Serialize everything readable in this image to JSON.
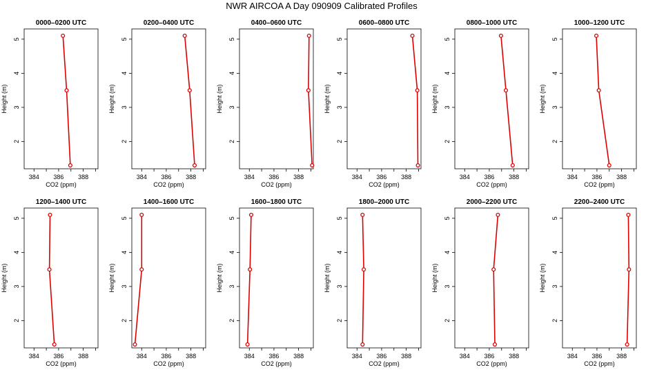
{
  "figure": {
    "title": "NWR AIRCOA A  Day 090909  Calibrated Profiles"
  },
  "chart_data": [
    {
      "type": "line",
      "title": "0000–0200 UTC",
      "xlabel": "CO2 (ppm)",
      "ylabel": "Height (m)",
      "xlim": [
        383.2,
        389.2
      ],
      "ylim": [
        1.2,
        5.3
      ],
      "xticks": [
        384,
        386,
        388
      ],
      "yticks": [
        2,
        3,
        4,
        5
      ],
      "grid": false,
      "series": [
        {
          "color": "#dd0000",
          "points": [
            [
              386.35,
              5.1
            ],
            [
              386.65,
              3.5
            ],
            [
              386.95,
              1.3
            ]
          ]
        }
      ]
    },
    {
      "type": "line",
      "title": "0200–0400 UTC",
      "xlabel": "CO2 (ppm)",
      "ylabel": "Height (m)",
      "xlim": [
        383.2,
        389.2
      ],
      "ylim": [
        1.2,
        5.3
      ],
      "xticks": [
        384,
        386,
        388
      ],
      "yticks": [
        2,
        3,
        4,
        5
      ],
      "grid": false,
      "series": [
        {
          "color": "#dd0000",
          "points": [
            [
              387.5,
              5.1
            ],
            [
              387.9,
              3.5
            ],
            [
              388.3,
              1.3
            ]
          ]
        }
      ]
    },
    {
      "type": "line",
      "title": "0400–0600 UTC",
      "xlabel": "CO2 (ppm)",
      "ylabel": "Height (m)",
      "xlim": [
        383.2,
        389.2
      ],
      "ylim": [
        1.2,
        5.3
      ],
      "xticks": [
        384,
        386,
        388
      ],
      "yticks": [
        2,
        3,
        4,
        5
      ],
      "grid": false,
      "series": [
        {
          "color": "#dd0000",
          "points": [
            [
              388.85,
              5.1
            ],
            [
              388.8,
              3.5
            ],
            [
              389.1,
              1.3
            ]
          ]
        }
      ]
    },
    {
      "type": "line",
      "title": "0600–0800 UTC",
      "xlabel": "CO2 (ppm)",
      "ylabel": "Height (m)",
      "xlim": [
        383.2,
        389.2
      ],
      "ylim": [
        1.2,
        5.3
      ],
      "xticks": [
        384,
        386,
        388
      ],
      "yticks": [
        2,
        3,
        4,
        5
      ],
      "grid": false,
      "series": [
        {
          "color": "#dd0000",
          "points": [
            [
              388.5,
              5.1
            ],
            [
              388.9,
              3.5
            ],
            [
              388.95,
              1.3
            ]
          ]
        }
      ]
    },
    {
      "type": "line",
      "title": "0800–1000 UTC",
      "xlabel": "CO2 (ppm)",
      "ylabel": "Height (m)",
      "xlim": [
        383.2,
        389.2
      ],
      "ylim": [
        1.2,
        5.3
      ],
      "xticks": [
        384,
        386,
        388
      ],
      "yticks": [
        2,
        3,
        4,
        5
      ],
      "grid": false,
      "series": [
        {
          "color": "#dd0000",
          "points": [
            [
              386.95,
              5.1
            ],
            [
              387.35,
              3.5
            ],
            [
              387.9,
              1.3
            ]
          ]
        }
      ]
    },
    {
      "type": "line",
      "title": "1000–1200 UTC",
      "xlabel": "CO2 (ppm)",
      "ylabel": "Height (m)",
      "xlim": [
        383.2,
        389.2
      ],
      "ylim": [
        1.2,
        5.3
      ],
      "xticks": [
        384,
        386,
        388
      ],
      "yticks": [
        2,
        3,
        4,
        5
      ],
      "grid": false,
      "series": [
        {
          "color": "#dd0000",
          "points": [
            [
              385.95,
              5.1
            ],
            [
              386.15,
              3.5
            ],
            [
              387.0,
              1.3
            ]
          ]
        }
      ]
    },
    {
      "type": "line",
      "title": "1200–1400 UTC",
      "xlabel": "CO2 (ppm)",
      "ylabel": "Height (m)",
      "xlim": [
        383.2,
        389.2
      ],
      "ylim": [
        1.2,
        5.3
      ],
      "xticks": [
        384,
        386,
        388
      ],
      "yticks": [
        2,
        3,
        4,
        5
      ],
      "grid": false,
      "series": [
        {
          "color": "#dd0000",
          "points": [
            [
              385.3,
              5.1
            ],
            [
              385.25,
              3.5
            ],
            [
              385.65,
              1.3
            ]
          ]
        }
      ]
    },
    {
      "type": "line",
      "title": "1400–1600 UTC",
      "xlabel": "CO2 (ppm)",
      "ylabel": "Height (m)",
      "xlim": [
        383.2,
        389.2
      ],
      "ylim": [
        1.2,
        5.3
      ],
      "xticks": [
        384,
        386,
        388
      ],
      "yticks": [
        2,
        3,
        4,
        5
      ],
      "grid": false,
      "series": [
        {
          "color": "#dd0000",
          "points": [
            [
              384.0,
              5.1
            ],
            [
              384.0,
              3.5
            ],
            [
              383.45,
              1.3
            ]
          ]
        }
      ]
    },
    {
      "type": "line",
      "title": "1600–1800 UTC",
      "xlabel": "CO2 (ppm)",
      "ylabel": "Height (m)",
      "xlim": [
        383.2,
        389.2
      ],
      "ylim": [
        1.2,
        5.3
      ],
      "xticks": [
        384,
        386,
        388
      ],
      "yticks": [
        2,
        3,
        4,
        5
      ],
      "grid": false,
      "series": [
        {
          "color": "#dd0000",
          "points": [
            [
              384.15,
              5.1
            ],
            [
              384.05,
              3.5
            ],
            [
              383.85,
              1.3
            ]
          ]
        }
      ]
    },
    {
      "type": "line",
      "title": "1800–2000 UTC",
      "xlabel": "CO2 (ppm)",
      "ylabel": "Height (m)",
      "xlim": [
        383.2,
        389.2
      ],
      "ylim": [
        1.2,
        5.3
      ],
      "xticks": [
        384,
        386,
        388
      ],
      "yticks": [
        2,
        3,
        4,
        5
      ],
      "grid": false,
      "series": [
        {
          "color": "#dd0000",
          "points": [
            [
              384.45,
              5.1
            ],
            [
              384.55,
              3.5
            ],
            [
              384.45,
              1.3
            ]
          ]
        }
      ]
    },
    {
      "type": "line",
      "title": "2000–2200 UTC",
      "xlabel": "CO2 (ppm)",
      "ylabel": "Height (m)",
      "xlim": [
        383.2,
        389.2
      ],
      "ylim": [
        1.2,
        5.3
      ],
      "xticks": [
        384,
        386,
        388
      ],
      "yticks": [
        2,
        3,
        4,
        5
      ],
      "grid": false,
      "series": [
        {
          "color": "#dd0000",
          "points": [
            [
              386.7,
              5.1
            ],
            [
              386.35,
              3.5
            ],
            [
              386.45,
              1.3
            ]
          ]
        }
      ]
    },
    {
      "type": "line",
      "title": "2200–2400 UTC",
      "xlabel": "CO2 (ppm)",
      "ylabel": "Height (m)",
      "xlim": [
        383.2,
        389.2
      ],
      "ylim": [
        1.2,
        5.3
      ],
      "xticks": [
        384,
        386,
        388
      ],
      "yticks": [
        2,
        3,
        4,
        5
      ],
      "grid": false,
      "series": [
        {
          "color": "#dd0000",
          "points": [
            [
              388.55,
              5.1
            ],
            [
              388.6,
              3.5
            ],
            [
              388.45,
              1.3
            ]
          ]
        }
      ]
    }
  ]
}
